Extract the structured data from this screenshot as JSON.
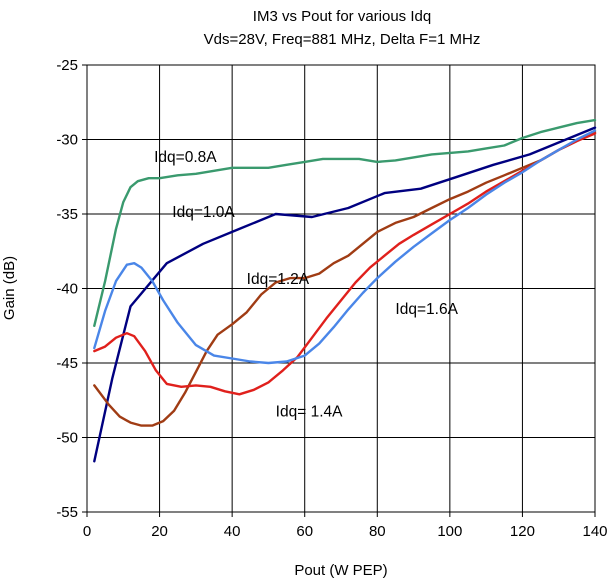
{
  "chart_data": {
    "type": "line",
    "title": "IM3 vs Pout for various Idq",
    "subtitle": "Vds=28V, Freq=881 MHz, Delta F=1 MHz",
    "xlabel": "Pout (W PEP)",
    "ylabel": "Gain (dB)",
    "xlim": [
      0,
      140
    ],
    "ylim": [
      -55,
      -25
    ],
    "x_ticks": [
      0,
      20,
      40,
      60,
      80,
      100,
      120,
      140
    ],
    "y_ticks": [
      -25,
      -30,
      -35,
      -40,
      -45,
      -50,
      -55
    ],
    "grid": true,
    "legend": "none",
    "series": [
      {
        "name": "Idq=0.8A",
        "color": "#3a9a6e",
        "points": [
          [
            2,
            -42.5
          ],
          [
            5,
            -39.5
          ],
          [
            8,
            -36.0
          ],
          [
            10,
            -34.2
          ],
          [
            12,
            -33.2
          ],
          [
            14,
            -32.8
          ],
          [
            17,
            -32.6
          ],
          [
            20,
            -32.6
          ],
          [
            25,
            -32.4
          ],
          [
            30,
            -32.3
          ],
          [
            35,
            -32.1
          ],
          [
            40,
            -31.9
          ],
          [
            45,
            -31.9
          ],
          [
            50,
            -31.9
          ],
          [
            55,
            -31.7
          ],
          [
            60,
            -31.5
          ],
          [
            65,
            -31.3
          ],
          [
            70,
            -31.3
          ],
          [
            75,
            -31.3
          ],
          [
            80,
            -31.5
          ],
          [
            85,
            -31.4
          ],
          [
            90,
            -31.2
          ],
          [
            95,
            -31.0
          ],
          [
            100,
            -30.9
          ],
          [
            105,
            -30.8
          ],
          [
            110,
            -30.6
          ],
          [
            115,
            -30.4
          ],
          [
            120,
            -29.9
          ],
          [
            125,
            -29.5
          ],
          [
            130,
            -29.2
          ],
          [
            135,
            -28.9
          ],
          [
            140,
            -28.7
          ]
        ]
      },
      {
        "name": "Idq=1.0A",
        "color": "#000080",
        "points": [
          [
            2,
            -51.6
          ],
          [
            7,
            -46.0
          ],
          [
            12,
            -41.2
          ],
          [
            22,
            -38.3
          ],
          [
            32,
            -37.0
          ],
          [
            42,
            -36.0
          ],
          [
            52,
            -35.0
          ],
          [
            62,
            -35.2
          ],
          [
            72,
            -34.6
          ],
          [
            82,
            -33.6
          ],
          [
            92,
            -33.3
          ],
          [
            102,
            -32.5
          ],
          [
            112,
            -31.7
          ],
          [
            122,
            -31.0
          ],
          [
            132,
            -30.0
          ],
          [
            140,
            -29.2
          ]
        ]
      },
      {
        "name": "Idq=1.2A",
        "color": "#a03c14",
        "points": [
          [
            2,
            -46.5
          ],
          [
            6,
            -47.8
          ],
          [
            9,
            -48.6
          ],
          [
            12,
            -49.0
          ],
          [
            15,
            -49.2
          ],
          [
            18,
            -49.2
          ],
          [
            21,
            -48.9
          ],
          [
            24,
            -48.2
          ],
          [
            27,
            -47.0
          ],
          [
            30,
            -45.6
          ],
          [
            33,
            -44.2
          ],
          [
            36,
            -43.1
          ],
          [
            40,
            -42.4
          ],
          [
            44,
            -41.6
          ],
          [
            48,
            -40.4
          ],
          [
            52,
            -39.6
          ],
          [
            56,
            -39.3
          ],
          [
            60,
            -39.3
          ],
          [
            64,
            -39.0
          ],
          [
            68,
            -38.3
          ],
          [
            72,
            -37.8
          ],
          [
            76,
            -37.0
          ],
          [
            80,
            -36.2
          ],
          [
            85,
            -35.6
          ],
          [
            90,
            -35.2
          ],
          [
            95,
            -34.6
          ],
          [
            100,
            -34.0
          ],
          [
            105,
            -33.5
          ],
          [
            110,
            -32.9
          ],
          [
            115,
            -32.4
          ],
          [
            120,
            -31.9
          ],
          [
            125,
            -31.4
          ],
          [
            130,
            -30.7
          ],
          [
            135,
            -30.1
          ],
          [
            140,
            -29.5
          ]
        ]
      },
      {
        "name": "Idq= 1.4A",
        "color": "#e0201c",
        "points": [
          [
            2,
            -44.2
          ],
          [
            5,
            -43.9
          ],
          [
            8,
            -43.3
          ],
          [
            11,
            -43.0
          ],
          [
            13,
            -43.2
          ],
          [
            16,
            -44.2
          ],
          [
            19,
            -45.5
          ],
          [
            22,
            -46.4
          ],
          [
            26,
            -46.6
          ],
          [
            30,
            -46.5
          ],
          [
            34,
            -46.6
          ],
          [
            38,
            -46.9
          ],
          [
            42,
            -47.1
          ],
          [
            46,
            -46.8
          ],
          [
            50,
            -46.3
          ],
          [
            54,
            -45.5
          ],
          [
            58,
            -44.6
          ],
          [
            62,
            -43.3
          ],
          [
            66,
            -42.0
          ],
          [
            70,
            -40.8
          ],
          [
            74,
            -39.6
          ],
          [
            78,
            -38.6
          ],
          [
            82,
            -37.8
          ],
          [
            86,
            -37.0
          ],
          [
            90,
            -36.4
          ],
          [
            95,
            -35.7
          ],
          [
            100,
            -35.0
          ],
          [
            105,
            -34.3
          ],
          [
            110,
            -33.5
          ],
          [
            115,
            -32.8
          ],
          [
            120,
            -32.1
          ],
          [
            125,
            -31.4
          ],
          [
            130,
            -30.7
          ],
          [
            135,
            -30.1
          ],
          [
            140,
            -29.6
          ]
        ]
      },
      {
        "name": "Idq=1.6A",
        "color": "#4a86e8",
        "points": [
          [
            2,
            -44.0
          ],
          [
            5,
            -41.5
          ],
          [
            8,
            -39.5
          ],
          [
            11,
            -38.4
          ],
          [
            13,
            -38.3
          ],
          [
            15,
            -38.6
          ],
          [
            18,
            -39.5
          ],
          [
            21,
            -40.8
          ],
          [
            25,
            -42.3
          ],
          [
            30,
            -43.8
          ],
          [
            35,
            -44.5
          ],
          [
            40,
            -44.7
          ],
          [
            45,
            -44.9
          ],
          [
            50,
            -45.0
          ],
          [
            55,
            -44.9
          ],
          [
            60,
            -44.5
          ],
          [
            64,
            -43.7
          ],
          [
            68,
            -42.6
          ],
          [
            72,
            -41.4
          ],
          [
            76,
            -40.3
          ],
          [
            80,
            -39.3
          ],
          [
            85,
            -38.2
          ],
          [
            90,
            -37.2
          ],
          [
            95,
            -36.3
          ],
          [
            100,
            -35.4
          ],
          [
            105,
            -34.6
          ],
          [
            110,
            -33.7
          ],
          [
            115,
            -32.9
          ],
          [
            120,
            -32.2
          ],
          [
            125,
            -31.4
          ],
          [
            130,
            -30.7
          ],
          [
            135,
            -30.0
          ],
          [
            140,
            -29.4
          ]
        ]
      }
    ],
    "annotations": [
      {
        "text": "Idq=0.8A",
        "x": 18.5,
        "y": -31.5
      },
      {
        "text": "Idq=1.0A",
        "x": 23.5,
        "y": -35.2
      },
      {
        "text": "Idq=1.2A",
        "x": 44,
        "y": -39.7
      },
      {
        "text": "Idq=1.6A",
        "x": 85,
        "y": -41.7
      },
      {
        "text": "Idq= 1.4A",
        "x": 52,
        "y": -48.6
      }
    ]
  }
}
